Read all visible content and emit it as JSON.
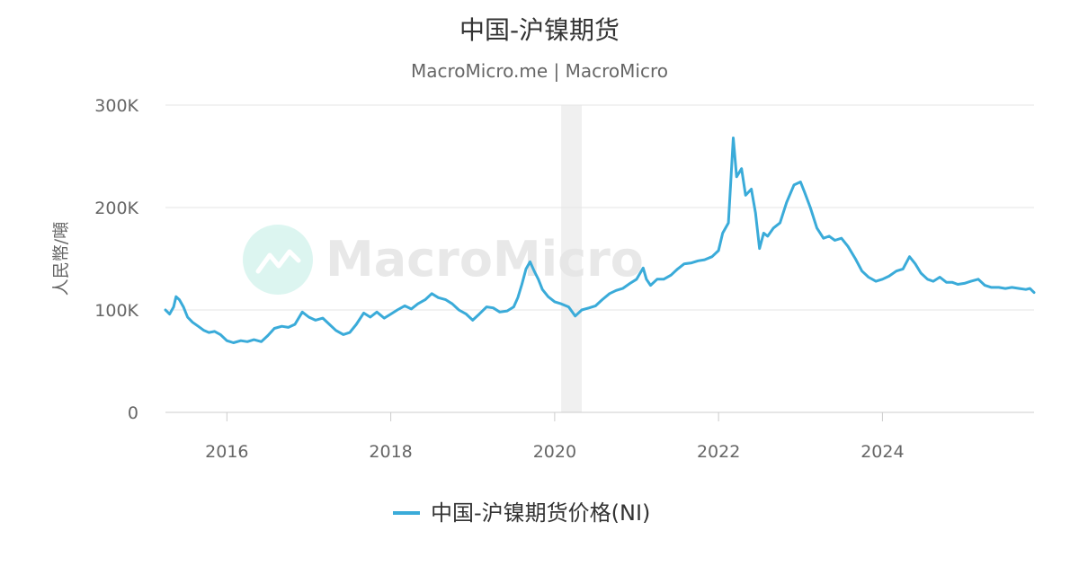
{
  "chart_data": {
    "type": "line",
    "title": "中国-沪镍期货",
    "subtitle": "MacroMicro.me | MacroMicro",
    "watermark": "MacroMicro",
    "ylabel": "人民幣/噸",
    "ylim": [
      0,
      300000
    ],
    "y_ticks": [
      "0",
      "100K",
      "200K",
      "300K"
    ],
    "x_range": [
      2015.25,
      2025.85
    ],
    "x_ticks": [
      "2016",
      "2018",
      "2020",
      "2022",
      "2024"
    ],
    "grid": true,
    "legend_position": "bottom",
    "shaded_region": [
      2020.08,
      2020.33
    ],
    "series": [
      {
        "name": "中国-沪镍期货价格(NI)",
        "color": "#3aabd9",
        "points": [
          [
            2015.25,
            100000
          ],
          [
            2015.3,
            96000
          ],
          [
            2015.35,
            103000
          ],
          [
            2015.38,
            113000
          ],
          [
            2015.42,
            110000
          ],
          [
            2015.47,
            103000
          ],
          [
            2015.52,
            93000
          ],
          [
            2015.58,
            88000
          ],
          [
            2015.65,
            84000
          ],
          [
            2015.72,
            80000
          ],
          [
            2015.78,
            78000
          ],
          [
            2015.85,
            79000
          ],
          [
            2015.92,
            76000
          ],
          [
            2016.0,
            70000
          ],
          [
            2016.08,
            68000
          ],
          [
            2016.17,
            70000
          ],
          [
            2016.25,
            69000
          ],
          [
            2016.33,
            71000
          ],
          [
            2016.42,
            69000
          ],
          [
            2016.5,
            75000
          ],
          [
            2016.58,
            82000
          ],
          [
            2016.67,
            84000
          ],
          [
            2016.75,
            83000
          ],
          [
            2016.83,
            86000
          ],
          [
            2016.92,
            98000
          ],
          [
            2017.0,
            93000
          ],
          [
            2017.08,
            90000
          ],
          [
            2017.17,
            92000
          ],
          [
            2017.25,
            86000
          ],
          [
            2017.33,
            80000
          ],
          [
            2017.42,
            76000
          ],
          [
            2017.5,
            78000
          ],
          [
            2017.58,
            86000
          ],
          [
            2017.67,
            97000
          ],
          [
            2017.75,
            93000
          ],
          [
            2017.83,
            98000
          ],
          [
            2017.92,
            92000
          ],
          [
            2018.0,
            96000
          ],
          [
            2018.08,
            100000
          ],
          [
            2018.17,
            104000
          ],
          [
            2018.25,
            101000
          ],
          [
            2018.33,
            106000
          ],
          [
            2018.42,
            110000
          ],
          [
            2018.5,
            116000
          ],
          [
            2018.58,
            112000
          ],
          [
            2018.67,
            110000
          ],
          [
            2018.75,
            106000
          ],
          [
            2018.83,
            100000
          ],
          [
            2018.92,
            96000
          ],
          [
            2019.0,
            90000
          ],
          [
            2019.08,
            96000
          ],
          [
            2019.17,
            103000
          ],
          [
            2019.25,
            102000
          ],
          [
            2019.33,
            98000
          ],
          [
            2019.42,
            99000
          ],
          [
            2019.5,
            103000
          ],
          [
            2019.55,
            112000
          ],
          [
            2019.6,
            125000
          ],
          [
            2019.65,
            140000
          ],
          [
            2019.7,
            147000
          ],
          [
            2019.75,
            138000
          ],
          [
            2019.8,
            130000
          ],
          [
            2019.85,
            120000
          ],
          [
            2019.92,
            113000
          ],
          [
            2020.0,
            108000
          ],
          [
            2020.08,
            106000
          ],
          [
            2020.17,
            103000
          ],
          [
            2020.25,
            94000
          ],
          [
            2020.33,
            100000
          ],
          [
            2020.42,
            102000
          ],
          [
            2020.5,
            104000
          ],
          [
            2020.58,
            110000
          ],
          [
            2020.67,
            116000
          ],
          [
            2020.75,
            119000
          ],
          [
            2020.83,
            121000
          ],
          [
            2020.92,
            126000
          ],
          [
            2021.0,
            130000
          ],
          [
            2021.08,
            141000
          ],
          [
            2021.12,
            130000
          ],
          [
            2021.17,
            124000
          ],
          [
            2021.25,
            130000
          ],
          [
            2021.33,
            130000
          ],
          [
            2021.42,
            134000
          ],
          [
            2021.5,
            140000
          ],
          [
            2021.58,
            145000
          ],
          [
            2021.67,
            146000
          ],
          [
            2021.75,
            148000
          ],
          [
            2021.83,
            149000
          ],
          [
            2021.92,
            152000
          ],
          [
            2022.0,
            158000
          ],
          [
            2022.05,
            175000
          ],
          [
            2022.12,
            185000
          ],
          [
            2022.18,
            268000
          ],
          [
            2022.22,
            230000
          ],
          [
            2022.28,
            238000
          ],
          [
            2022.33,
            212000
          ],
          [
            2022.4,
            218000
          ],
          [
            2022.45,
            195000
          ],
          [
            2022.5,
            160000
          ],
          [
            2022.55,
            175000
          ],
          [
            2022.6,
            172000
          ],
          [
            2022.67,
            180000
          ],
          [
            2022.75,
            185000
          ],
          [
            2022.83,
            205000
          ],
          [
            2022.92,
            222000
          ],
          [
            2023.0,
            225000
          ],
          [
            2023.05,
            215000
          ],
          [
            2023.12,
            200000
          ],
          [
            2023.2,
            180000
          ],
          [
            2023.28,
            170000
          ],
          [
            2023.35,
            172000
          ],
          [
            2023.42,
            168000
          ],
          [
            2023.5,
            170000
          ],
          [
            2023.58,
            162000
          ],
          [
            2023.67,
            150000
          ],
          [
            2023.75,
            138000
          ],
          [
            2023.83,
            132000
          ],
          [
            2023.92,
            128000
          ],
          [
            2024.0,
            130000
          ],
          [
            2024.08,
            133000
          ],
          [
            2024.17,
            138000
          ],
          [
            2024.25,
            140000
          ],
          [
            2024.33,
            152000
          ],
          [
            2024.4,
            145000
          ],
          [
            2024.47,
            136000
          ],
          [
            2024.55,
            130000
          ],
          [
            2024.62,
            128000
          ],
          [
            2024.7,
            132000
          ],
          [
            2024.78,
            127000
          ],
          [
            2024.85,
            127000
          ],
          [
            2024.92,
            125000
          ],
          [
            2025.0,
            126000
          ],
          [
            2025.08,
            128000
          ],
          [
            2025.17,
            130000
          ],
          [
            2025.25,
            124000
          ],
          [
            2025.33,
            122000
          ],
          [
            2025.42,
            122000
          ],
          [
            2025.5,
            121000
          ],
          [
            2025.58,
            122000
          ],
          [
            2025.67,
            121000
          ],
          [
            2025.75,
            120000
          ],
          [
            2025.8,
            121000
          ],
          [
            2025.85,
            117000
          ]
        ]
      }
    ]
  }
}
